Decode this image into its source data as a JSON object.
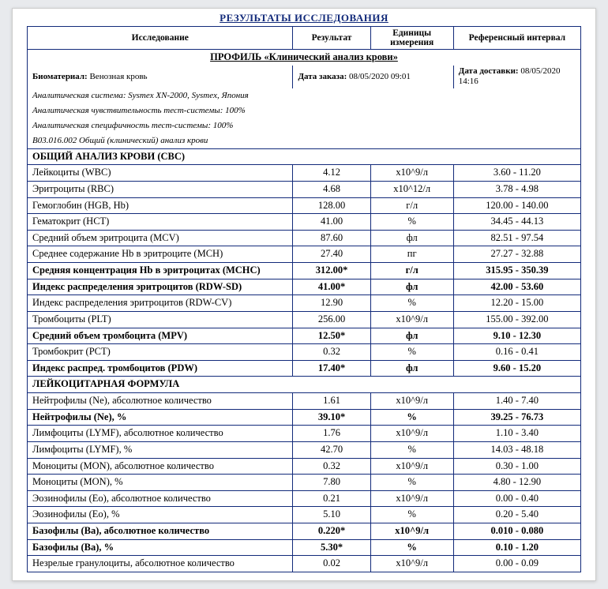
{
  "title": "РЕЗУЛЬТАТЫ ИССЛЕДОВАНИЯ",
  "headers": {
    "study": "Исследование",
    "result": "Результат",
    "units": "Единицы измерения",
    "reference": "Референсный интервал"
  },
  "profile": "ПРОФИЛЬ «Клинический анализ крови»",
  "meta": {
    "biomaterial_label": "Биоматериал:",
    "biomaterial_value": "Венозная кровь",
    "order_label": "Дата заказа:",
    "order_value": "08/05/2020 09:01",
    "delivery_label": "Дата доставки:",
    "delivery_value": "08/05/2020 14:16",
    "line1": "Аналитическая система: Sysmex XN-2000, Sysmex, Япония",
    "line2": "Аналитическая чувствительность тест-системы: 100%",
    "line3": "Аналитическая специфичность тест-системы: 100%",
    "line4": "B03.016.002 Общий (клинический) анализ крови"
  },
  "section_cbc": "ОБЩИЙ АНАЛИЗ КРОВИ (CBC)",
  "section_diff": "ЛЕЙКОЦИТАРНАЯ ФОРМУЛА",
  "rows": [
    {
      "name": "Лейкоциты (WBC)",
      "val": "4.12",
      "unit": "x10^9/л",
      "ref": "3.60 - 11.20",
      "bold": false
    },
    {
      "name": "Эритроциты (RBC)",
      "val": "4.68",
      "unit": "x10^12/л",
      "ref": "3.78 - 4.98",
      "bold": false
    },
    {
      "name": "Гемоглобин (HGB, Hb)",
      "val": "128.00",
      "unit": "г/л",
      "ref": "120.00 - 140.00",
      "bold": false
    },
    {
      "name": "Гематокрит (HCT)",
      "val": "41.00",
      "unit": "%",
      "ref": "34.45 - 44.13",
      "bold": false
    },
    {
      "name": "Средний объем эритроцита (MCV)",
      "val": "87.60",
      "unit": "фл",
      "ref": "82.51 - 97.54",
      "bold": false
    },
    {
      "name": "Среднее содержание Hb в эритроците (MCH)",
      "val": "27.40",
      "unit": "пг",
      "ref": "27.27 - 32.88",
      "bold": false
    },
    {
      "name": "Средняя концентрация Hb в эритроцитах (MCHC)",
      "val": "312.00*",
      "unit": "г/л",
      "ref": "315.95 - 350.39",
      "bold": true
    },
    {
      "name": "Индекс распределения эритроцитов (RDW-SD)",
      "val": "41.00*",
      "unit": "фл",
      "ref": "42.00 - 53.60",
      "bold": true
    },
    {
      "name": "Индекс распределения эритроцитов (RDW-CV)",
      "val": "12.90",
      "unit": "%",
      "ref": "12.20 - 15.00",
      "bold": false
    },
    {
      "name": "Тромбоциты (PLT)",
      "val": "256.00",
      "unit": "x10^9/л",
      "ref": "155.00 - 392.00",
      "bold": false
    },
    {
      "name": "Средний объем тромбоцита (MPV)",
      "val": "12.50*",
      "unit": "фл",
      "ref": "9.10 - 12.30",
      "bold": true
    },
    {
      "name": "Тромбокрит (PCT)",
      "val": "0.32",
      "unit": "%",
      "ref": "0.16 - 0.41",
      "bold": false
    },
    {
      "name": "Индекс распред. тромбоцитов (PDW)",
      "val": "17.40*",
      "unit": "фл",
      "ref": "9.60 - 15.20",
      "bold": true
    }
  ],
  "rows2": [
    {
      "name": "Нейтрофилы (Ne), абсолютное количество",
      "val": "1.61",
      "unit": "x10^9/л",
      "ref": "1.40 - 7.40",
      "bold": false
    },
    {
      "name": "Нейтрофилы (Ne), %",
      "val": "39.10*",
      "unit": "%",
      "ref": "39.25 - 76.73",
      "bold": true
    },
    {
      "name": "Лимфоциты (LYMF), абсолютное количество",
      "val": "1.76",
      "unit": "x10^9/л",
      "ref": "1.10 - 3.40",
      "bold": false
    },
    {
      "name": "Лимфоциты (LYMF), %",
      "val": "42.70",
      "unit": "%",
      "ref": "14.03 - 48.18",
      "bold": false
    },
    {
      "name": "Моноциты (MON), абсолютное количество",
      "val": "0.32",
      "unit": "x10^9/л",
      "ref": "0.30 - 1.00",
      "bold": false
    },
    {
      "name": "Моноциты (MON), %",
      "val": "7.80",
      "unit": "%",
      "ref": "4.80 - 12.90",
      "bold": false
    },
    {
      "name": "Эозинофилы (Eo), абсолютное количество",
      "val": "0.21",
      "unit": "x10^9/л",
      "ref": "0.00 - 0.40",
      "bold": false
    },
    {
      "name": "Эозинофилы (Eo), %",
      "val": "5.10",
      "unit": "%",
      "ref": "0.20 - 5.40",
      "bold": false
    },
    {
      "name": "Базофилы (Ba), абсолютное количество",
      "val": "0.220*",
      "unit": "x10^9/л",
      "ref": "0.010 - 0.080",
      "bold": true
    },
    {
      "name": "Базофилы (Ba), %",
      "val": "5.30*",
      "unit": "%",
      "ref": "0.10 - 1.20",
      "bold": true
    },
    {
      "name": "Незрелые гранулоциты, абсолютное количество",
      "val": "0.02",
      "unit": "x10^9/л",
      "ref": "0.00 - 0.09",
      "bold": false
    }
  ]
}
